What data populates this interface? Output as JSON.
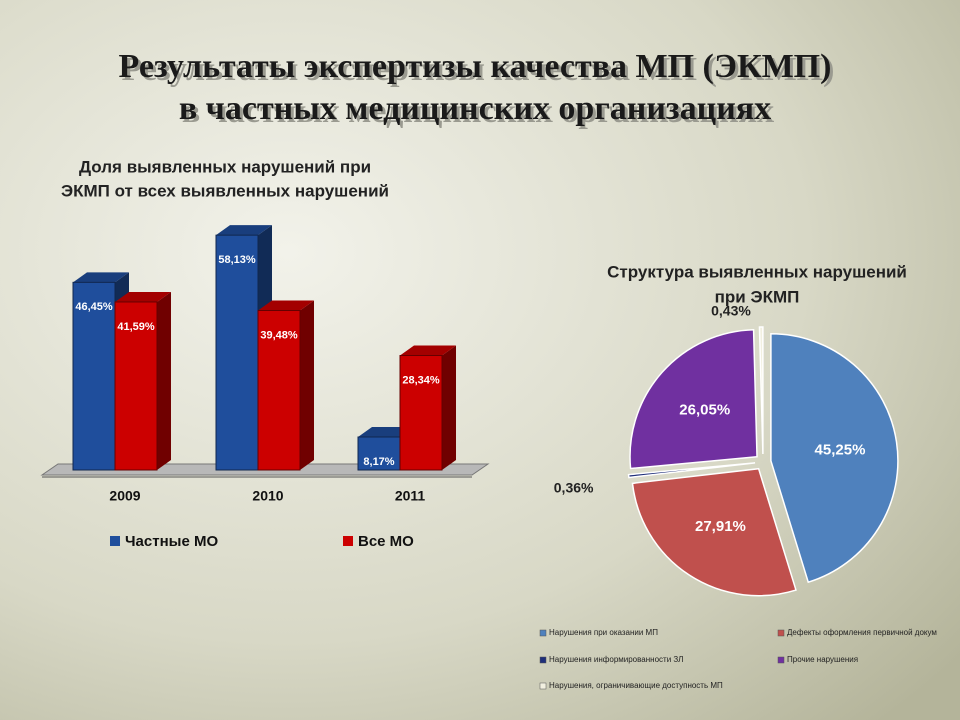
{
  "title": [
    "Результаты экспертизы качества МП (ЭКМП)",
    "в частных медицинских организациях"
  ],
  "chart_data": [
    {
      "type": "bar",
      "title": [
        "Доля выявленных нарушений при",
        "ЭКМП от всех выявленных нарушений"
      ],
      "categories": [
        "2009",
        "2010",
        "2011"
      ],
      "series": [
        {
          "name": "Частные МО",
          "color": "#1f4e9c",
          "values": [
            46.45,
            58.13,
            8.17
          ],
          "value_labels": [
            "46,45%",
            "58,13%",
            "8,17%"
          ]
        },
        {
          "name": "Все МО",
          "color": "#cc0000",
          "values": [
            41.59,
            39.48,
            28.34
          ],
          "value_labels": [
            "41,59%",
            "39,48%",
            "28,34%"
          ]
        }
      ]
    },
    {
      "type": "pie",
      "title": [
        "Структура выявленных нарушений",
        "при ЭКМП"
      ],
      "categories": [
        "Нарушения при оказании МП",
        "Дефекты оформления первичной докум",
        "Нарушения информированности ЗЛ",
        "Прочие нарушения",
        "Нарушения, ограничивающие доступность МП"
      ],
      "colors": [
        "#4f81bd",
        "#c0504d",
        "#1f2f7a",
        "#7030a0",
        "#f2f0e0"
      ],
      "values": [
        45.25,
        27.91,
        0.36,
        26.05,
        0.43
      ],
      "value_labels": [
        "45,25%",
        "27,91%",
        "0,36%",
        "26,05%",
        "0,43%"
      ]
    }
  ]
}
